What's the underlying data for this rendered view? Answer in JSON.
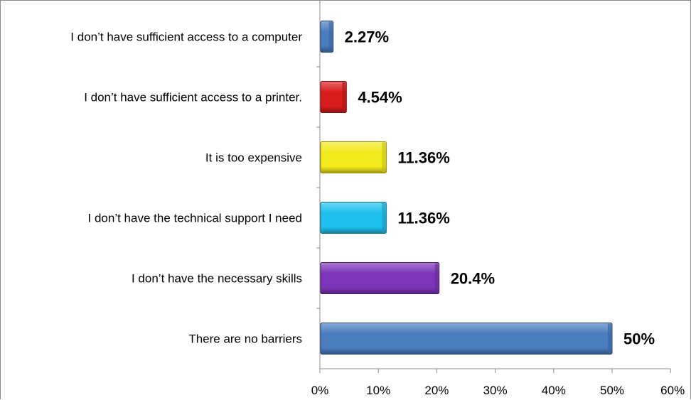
{
  "chart_data": {
    "type": "bar",
    "orientation": "horizontal",
    "categories": [
      "I don’t have sufficient access to a computer",
      "I don’t have sufficient access to a printer.",
      "It is too expensive",
      "I don’t have the technical support I need",
      "I don’t have the necessary skills",
      "There are no barriers"
    ],
    "values": [
      2.27,
      4.54,
      11.36,
      11.36,
      20.4,
      50
    ],
    "data_labels": [
      "2.27%",
      "4.54%",
      "11.36%",
      "11.36%",
      "20.4%",
      "50%"
    ],
    "colors": [
      "#4a7cc0",
      "#d81b1b",
      "#f2ea1a",
      "#1ec0ee",
      "#7d34b8",
      "#4a7cc0"
    ],
    "xlim": [
      0,
      60
    ],
    "x_ticks": [
      0,
      10,
      20,
      30,
      40,
      50,
      60
    ],
    "x_tick_labels": [
      "0%",
      "10%",
      "20%",
      "30%",
      "40%",
      "50%",
      "60%"
    ],
    "title": "",
    "xlabel": "",
    "ylabel": "",
    "grid": false,
    "legend": "none"
  }
}
